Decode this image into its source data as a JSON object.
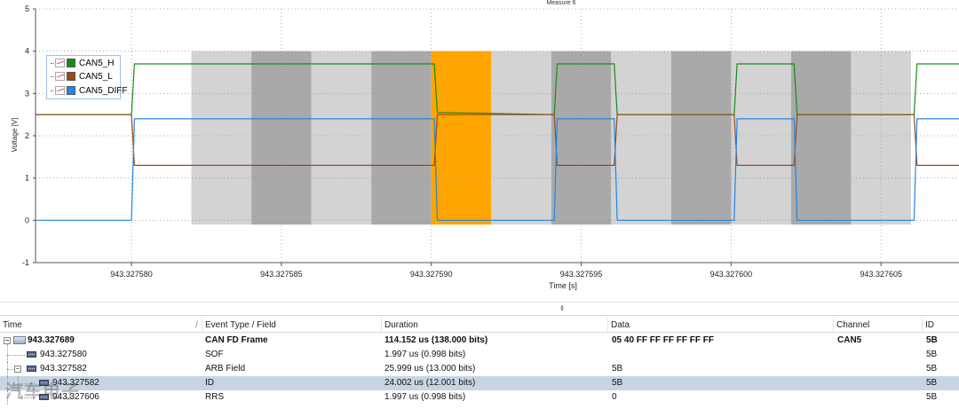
{
  "chart_data": {
    "type": "line",
    "title": "Measure 6",
    "xlabel": "Time [s]",
    "ylabel": "Voltage [V]",
    "xlim": [
      943.3275768,
      943.3276076
    ],
    "ylim": [
      -1,
      5
    ],
    "y_ticks": [
      -1,
      0,
      1,
      2,
      3,
      4,
      5
    ],
    "x_ticks": [
      943.32758,
      943.327585,
      943.32759,
      943.327595,
      943.3276,
      943.327605
    ],
    "x_tick_labels": [
      "943.327580",
      "943.327585",
      "943.327590",
      "943.327595",
      "943.327600",
      "943.327605"
    ],
    "grid": true,
    "legend_position": "top-left",
    "series": [
      {
        "name": "CAN5_H",
        "color": "#1a8a1a",
        "points": [
          [
            943.3275768,
            2.5
          ],
          [
            943.32758,
            2.5
          ],
          [
            943.3275801,
            3.7
          ],
          [
            943.3275901,
            3.7
          ],
          [
            943.3275902,
            2.55
          ],
          [
            943.3275941,
            2.5
          ],
          [
            943.3275942,
            3.7
          ],
          [
            943.3275961,
            3.7
          ],
          [
            943.3275962,
            2.5
          ],
          [
            943.3276001,
            2.5
          ],
          [
            943.3276002,
            3.7
          ],
          [
            943.3276021,
            3.7
          ],
          [
            943.3276022,
            2.5
          ],
          [
            943.3276061,
            2.5
          ],
          [
            943.3276062,
            3.7
          ],
          [
            943.3276076,
            3.7
          ]
        ]
      },
      {
        "name": "CAN5_L",
        "color": "#9a4a18",
        "points": [
          [
            943.3275768,
            2.5
          ],
          [
            943.32758,
            2.5
          ],
          [
            943.3275801,
            1.3
          ],
          [
            943.3275901,
            1.3
          ],
          [
            943.3275902,
            2.5
          ],
          [
            943.3275941,
            2.5
          ],
          [
            943.3275942,
            1.3
          ],
          [
            943.3275961,
            1.3
          ],
          [
            943.3275962,
            2.5
          ],
          [
            943.3276001,
            2.5
          ],
          [
            943.3276002,
            1.3
          ],
          [
            943.3276021,
            1.3
          ],
          [
            943.3276022,
            2.5
          ],
          [
            943.3276061,
            2.5
          ],
          [
            943.3276062,
            1.3
          ],
          [
            943.3276076,
            1.3
          ]
        ]
      },
      {
        "name": "CAN5_DIFF",
        "color": "#1f86e8",
        "points": [
          [
            943.3275768,
            0.0
          ],
          [
            943.32758,
            0.0
          ],
          [
            943.3275801,
            2.4
          ],
          [
            943.3275901,
            2.4
          ],
          [
            943.3275902,
            0.0
          ],
          [
            943.3275941,
            0.0
          ],
          [
            943.3275942,
            2.4
          ],
          [
            943.3275961,
            2.4
          ],
          [
            943.3275962,
            0.0
          ],
          [
            943.3276001,
            0.0
          ],
          [
            943.3276002,
            2.4
          ],
          [
            943.3276021,
            2.4
          ],
          [
            943.3276022,
            0.0
          ],
          [
            943.3276061,
            0.0
          ],
          [
            943.3276062,
            2.4
          ],
          [
            943.3276076,
            2.4
          ]
        ]
      }
    ],
    "bit_regions": [
      {
        "start": 943.327582,
        "end": 943.327584,
        "color": "#d3d3d3"
      },
      {
        "start": 943.327584,
        "end": 943.327586,
        "color": "#a9a9a9"
      },
      {
        "start": 943.327586,
        "end": 943.327588,
        "color": "#d3d3d3"
      },
      {
        "start": 943.327588,
        "end": 943.32759,
        "color": "#a9a9a9"
      },
      {
        "start": 943.32759,
        "end": 943.327592,
        "color": "#ffa500"
      },
      {
        "start": 943.327592,
        "end": 943.327594,
        "color": "#d3d3d3"
      },
      {
        "start": 943.327594,
        "end": 943.327596,
        "color": "#a9a9a9"
      },
      {
        "start": 943.327596,
        "end": 943.327598,
        "color": "#d3d3d3"
      },
      {
        "start": 943.327598,
        "end": 943.3276,
        "color": "#a9a9a9"
      },
      {
        "start": 943.3276,
        "end": 943.327602,
        "color": "#d3d3d3"
      },
      {
        "start": 943.327602,
        "end": 943.327604,
        "color": "#a9a9a9"
      },
      {
        "start": 943.327604,
        "end": 943.327606,
        "color": "#d3d3d3"
      }
    ],
    "bit_region_ylim": [
      -0.1,
      4
    ]
  },
  "legend": {
    "items": [
      {
        "label": "CAN5_H",
        "color": "#1a8a1a"
      },
      {
        "label": "CAN5_L",
        "color": "#9a4a18"
      },
      {
        "label": "CAN5_DIFF",
        "color": "#1f86e8"
      }
    ]
  },
  "table": {
    "columns": [
      "Time",
      "Event Type / Field",
      "Duration",
      "Data",
      "Channel",
      "ID"
    ],
    "rows": [
      {
        "time": "943.327689",
        "event": "CAN FD Frame",
        "duration": "114.152 us (138.000 bits)",
        "data": "05 40 FF FF FF FF FF FF",
        "channel": "CAN5",
        "id": "5B",
        "bold": true
      },
      {
        "time": "943.327580",
        "event": "SOF",
        "duration": "1.997 us (0.998 bits)",
        "data": "",
        "channel": "",
        "id": "5B"
      },
      {
        "time": "943.327582",
        "event": "ARB Field",
        "duration": "25.999 us (13.000 bits)",
        "data": "5B",
        "channel": "",
        "id": "5B"
      },
      {
        "time": "943.327582",
        "event": "ID",
        "duration": "24.002 us (12.001 bits)",
        "data": "5B",
        "channel": "",
        "id": "5B",
        "selected": true
      },
      {
        "time": "943.327606",
        "event": "RRS",
        "duration": "1.997 us (0.998 bits)",
        "data": "0",
        "channel": "",
        "id": "5B"
      }
    ]
  },
  "watermark": "汽车电子"
}
